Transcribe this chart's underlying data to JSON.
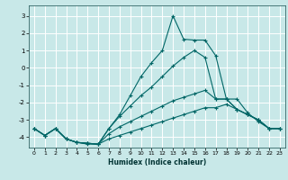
{
  "title": "",
  "xlabel": "Humidex (Indice chaleur)",
  "background_color": "#c8e8e8",
  "grid_color": "#ffffff",
  "line_color": "#006666",
  "xlim": [
    -0.5,
    23.5
  ],
  "ylim": [
    -4.6,
    3.6
  ],
  "yticks": [
    -4,
    -3,
    -2,
    -1,
    0,
    1,
    2,
    3
  ],
  "xticks": [
    0,
    1,
    2,
    3,
    4,
    5,
    6,
    7,
    8,
    9,
    10,
    11,
    12,
    13,
    14,
    15,
    16,
    17,
    18,
    19,
    20,
    21,
    22,
    23
  ],
  "lines": [
    {
      "x": [
        0,
        1,
        2,
        3,
        4,
        5,
        6,
        7,
        8,
        9,
        10,
        11,
        12,
        13,
        14,
        15,
        16,
        17,
        18,
        19,
        20,
        21,
        22,
        23
      ],
      "y": [
        -3.5,
        -3.9,
        -3.5,
        -4.1,
        -4.3,
        -4.4,
        -4.4,
        -3.5,
        -2.7,
        -1.6,
        -0.5,
        0.3,
        1.0,
        3.0,
        1.65,
        1.6,
        1.6,
        0.7,
        -1.8,
        -1.8,
        -2.6,
        -3.1,
        -3.5,
        -3.5
      ]
    },
    {
      "x": [
        0,
        1,
        2,
        3,
        4,
        5,
        6,
        7,
        8,
        9,
        10,
        11,
        12,
        13,
        14,
        15,
        16,
        17,
        18,
        19,
        20,
        21,
        22,
        23
      ],
      "y": [
        -3.5,
        -3.9,
        -3.5,
        -4.1,
        -4.3,
        -4.35,
        -4.4,
        -3.5,
        -2.8,
        -2.2,
        -1.6,
        -1.1,
        -0.5,
        0.1,
        0.6,
        1.0,
        0.6,
        -1.8,
        -1.8,
        -2.4,
        -2.7,
        -3.0,
        -3.5,
        -3.5
      ]
    },
    {
      "x": [
        0,
        1,
        2,
        3,
        4,
        5,
        6,
        7,
        8,
        9,
        10,
        11,
        12,
        13,
        14,
        15,
        16,
        17,
        18,
        19,
        20,
        21,
        22,
        23
      ],
      "y": [
        -3.5,
        -3.9,
        -3.5,
        -4.1,
        -4.3,
        -4.35,
        -4.4,
        -3.8,
        -3.4,
        -3.1,
        -2.8,
        -2.5,
        -2.2,
        -1.9,
        -1.7,
        -1.5,
        -1.3,
        -1.8,
        -1.8,
        -2.4,
        -2.7,
        -3.0,
        -3.5,
        -3.5
      ]
    },
    {
      "x": [
        0,
        1,
        2,
        3,
        4,
        5,
        6,
        7,
        8,
        9,
        10,
        11,
        12,
        13,
        14,
        15,
        16,
        17,
        18,
        19,
        20,
        21,
        22,
        23
      ],
      "y": [
        -3.5,
        -3.9,
        -3.5,
        -4.1,
        -4.3,
        -4.35,
        -4.4,
        -4.1,
        -3.9,
        -3.7,
        -3.5,
        -3.3,
        -3.1,
        -2.9,
        -2.7,
        -2.5,
        -2.3,
        -2.3,
        -2.1,
        -2.4,
        -2.7,
        -3.0,
        -3.5,
        -3.5
      ]
    }
  ]
}
